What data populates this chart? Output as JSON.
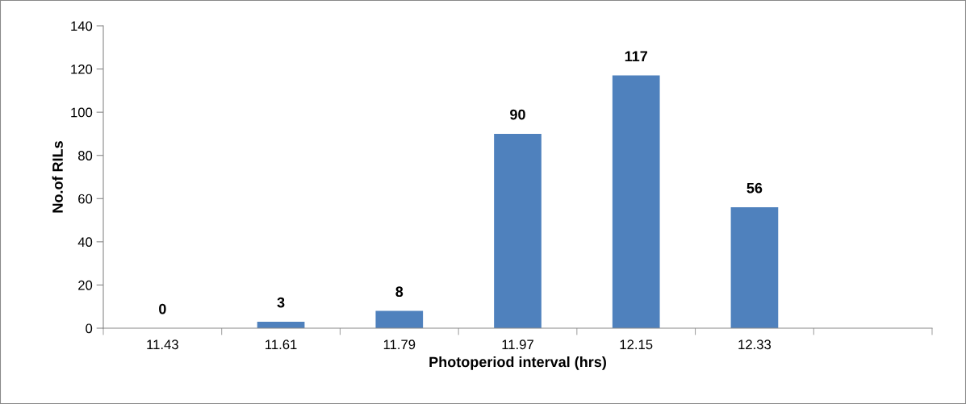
{
  "chart_data": {
    "type": "bar",
    "xlabel": "Photoperiod interval (hrs)",
    "ylabel": "No.of RILs",
    "categories": [
      "11.43",
      "11.61",
      "11.79",
      "11.97",
      "12.15",
      "12.33",
      null
    ],
    "values": [
      0,
      3,
      8,
      90,
      117,
      56,
      null
    ],
    "color": "#4f81bd",
    "ylim": [
      0,
      140
    ],
    "yticks": [
      0,
      20,
      40,
      60,
      80,
      100,
      120,
      140
    ],
    "data_labels": true,
    "grid": false
  }
}
